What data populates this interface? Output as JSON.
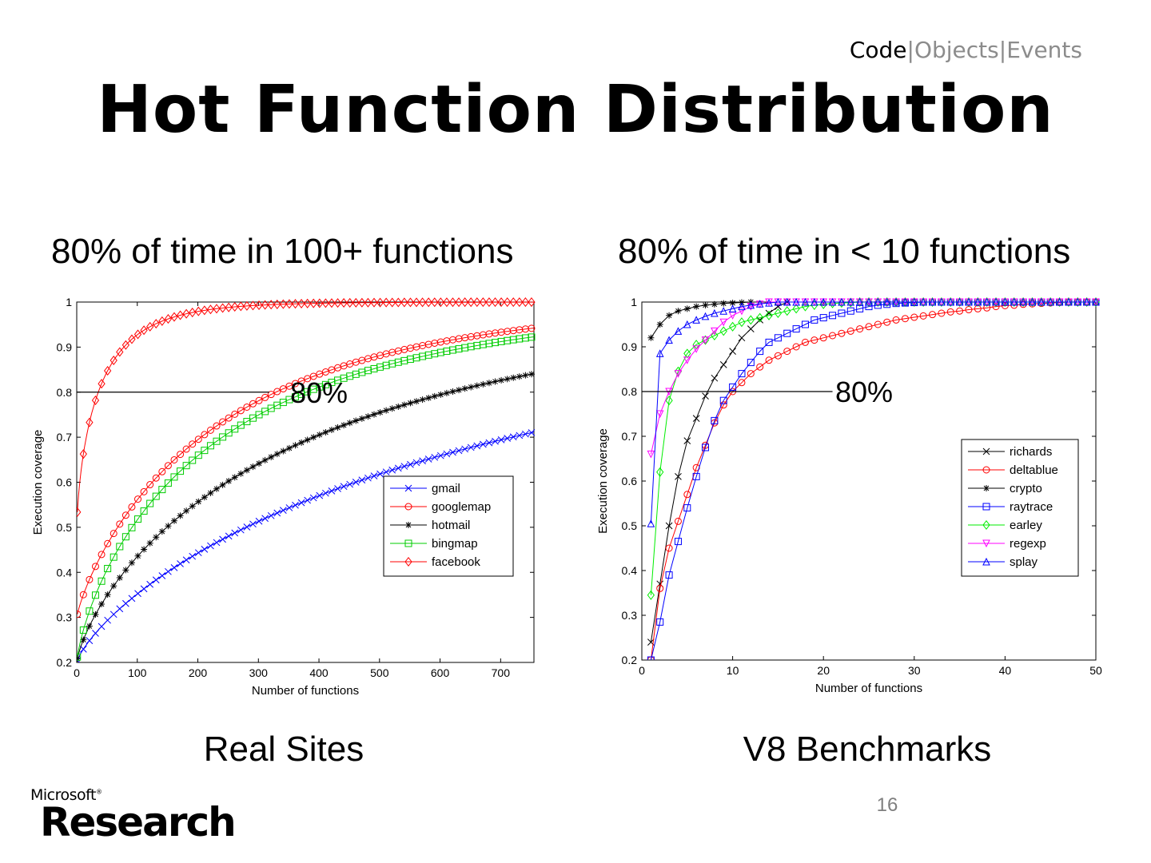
{
  "breadcrumb": {
    "active": "Code",
    "sep": "|",
    "item2": "Objects",
    "item3": "Events"
  },
  "title": "Hot Function Distribution",
  "left": {
    "subtitle": "80% of time in 100+ functions",
    "caption": "Real Sites"
  },
  "right": {
    "subtitle": "80% of time in < 10 functions",
    "caption": "V8 Benchmarks"
  },
  "page_number": "16",
  "logo": {
    "brand": "Microsoft",
    "reg": "®",
    "name": "Research"
  },
  "chart_data": [
    {
      "type": "line",
      "name": "real-sites",
      "xlabel": "Number of functions",
      "ylabel": "Execution coverage",
      "xlim": [
        0,
        755
      ],
      "ylim": [
        0.2,
        1
      ],
      "xticks": [
        0,
        100,
        200,
        300,
        400,
        500,
        600,
        700
      ],
      "yticks": [
        0.2,
        0.3,
        0.4,
        0.5,
        0.6,
        0.7,
        0.8,
        0.9,
        1
      ],
      "threshold": {
        "y": 0.8,
        "x_end": 318,
        "label": "80%"
      },
      "legend_position": "lower-right",
      "series": [
        {
          "name": "gmail",
          "color": "#0000ff",
          "marker": "x",
          "a": 0.2,
          "b": 0.8,
          "k": 0.0058,
          "p": 0.78,
          "every": 10
        },
        {
          "name": "googlemap",
          "color": "#ff0000",
          "marker": "o",
          "a": 0.3,
          "b": 0.7,
          "k": 0.0102,
          "p": 0.83,
          "every": 10
        },
        {
          "name": "hotmail",
          "color": "#000000",
          "marker": "*",
          "a": 0.2,
          "b": 0.8,
          "k": 0.0105,
          "p": 0.76,
          "every": 10
        },
        {
          "name": "bingmap",
          "color": "#00cc00",
          "marker": "s",
          "a": 0.2,
          "b": 0.8,
          "k": 0.0152,
          "p": 0.76,
          "every": 10
        },
        {
          "name": "facebook",
          "color": "#ff0000",
          "marker": "d",
          "a": 0.5,
          "b": 0.5,
          "k": 0.07,
          "p": 0.72,
          "every": 10
        }
      ]
    },
    {
      "type": "line",
      "name": "v8-benchmarks",
      "xlabel": "Number of functions",
      "ylabel": "Execution coverage",
      "xlim": [
        0,
        50
      ],
      "ylim": [
        0.2,
        1
      ],
      "xticks": [
        0,
        10,
        20,
        30,
        40,
        50
      ],
      "yticks": [
        0.2,
        0.3,
        0.4,
        0.5,
        0.6,
        0.7,
        0.8,
        0.9,
        1
      ],
      "threshold": {
        "y": 0.8,
        "x_end": 21,
        "label": "80%"
      },
      "legend_position": "center-right",
      "series": [
        {
          "name": "richards",
          "color": "#000000",
          "marker": "x",
          "values": [
            0.24,
            0.37,
            0.5,
            0.61,
            0.69,
            0.74,
            0.79,
            0.83,
            0.86,
            0.89,
            0.92,
            0.94,
            0.96,
            0.975,
            0.99,
            1
          ]
        },
        {
          "name": "deltablue",
          "color": "#ff0000",
          "marker": "o",
          "values": [
            0.2,
            0.36,
            0.45,
            0.51,
            0.57,
            0.63,
            0.68,
            0.73,
            0.77,
            0.8,
            0.82,
            0.84,
            0.855,
            0.87,
            0.88,
            0.89,
            0.9,
            0.91,
            0.915,
            0.92,
            0.925,
            0.93,
            0.935,
            0.94,
            0.945,
            0.95,
            0.955,
            0.96,
            0.963,
            0.966,
            0.969,
            0.972,
            0.975,
            0.978,
            0.98,
            0.983,
            0.985,
            0.987,
            0.99,
            0.992,
            0.993,
            0.995,
            0.996,
            0.997,
            0.998,
            0.999,
            1,
            1,
            1,
            1
          ]
        },
        {
          "name": "crypto",
          "color": "#000000",
          "marker": "*",
          "values": [
            0.92,
            0.95,
            0.97,
            0.98,
            0.985,
            0.99,
            0.993,
            0.995,
            0.997,
            0.998,
            0.999,
            1
          ]
        },
        {
          "name": "raytrace",
          "color": "#0000ff",
          "marker": "s",
          "values": [
            0.2,
            0.285,
            0.39,
            0.465,
            0.54,
            0.61,
            0.675,
            0.735,
            0.78,
            0.81,
            0.84,
            0.865,
            0.89,
            0.91,
            0.92,
            0.93,
            0.94,
            0.95,
            0.96,
            0.965,
            0.97,
            0.975,
            0.98,
            0.985,
            0.99,
            0.993,
            0.995,
            0.997,
            0.998,
            0.999,
            1,
            1,
            1,
            1,
            1,
            1,
            1,
            1,
            1,
            1,
            1,
            1,
            1,
            1,
            1,
            1,
            1,
            1,
            1,
            1
          ]
        },
        {
          "name": "earley",
          "color": "#00ee00",
          "marker": "d",
          "values": [
            0.345,
            0.62,
            0.78,
            0.845,
            0.885,
            0.905,
            0.915,
            0.925,
            0.935,
            0.945,
            0.955,
            0.96,
            0.965,
            0.97,
            0.975,
            0.98,
            0.985,
            0.99,
            0.993,
            0.995,
            0.997,
            0.998,
            0.999,
            1,
            1,
            1,
            1,
            1,
            1,
            1,
            1,
            1,
            1,
            1,
            1,
            1,
            1,
            1,
            1,
            1,
            1,
            1,
            1,
            1,
            1,
            1,
            1,
            1,
            1,
            1
          ]
        },
        {
          "name": "regexp",
          "color": "#ff00ff",
          "marker": "v",
          "values": [
            0.66,
            0.75,
            0.8,
            0.84,
            0.87,
            0.895,
            0.915,
            0.935,
            0.955,
            0.97,
            0.98,
            0.99,
            0.995,
            1,
            1,
            1,
            1,
            1,
            1,
            1,
            1,
            1,
            1,
            1,
            1,
            1,
            1,
            1,
            1,
            1,
            1,
            1,
            1,
            1,
            1,
            1,
            1,
            1,
            1,
            1,
            1,
            1,
            1,
            1,
            1,
            1,
            1,
            1,
            1,
            1
          ]
        },
        {
          "name": "splay",
          "color": "#0000ff",
          "marker": "^",
          "values": [
            0.505,
            0.885,
            0.915,
            0.935,
            0.95,
            0.96,
            0.968,
            0.975,
            0.98,
            0.985,
            0.99,
            0.993,
            0.996,
            0.998,
            1,
            1,
            1,
            1,
            1,
            1,
            1,
            1,
            1,
            1,
            1,
            1,
            1,
            1,
            1,
            1,
            1,
            1,
            1,
            1,
            1,
            1,
            1,
            1,
            1,
            1,
            1,
            1,
            1,
            1,
            1,
            1,
            1,
            1,
            1,
            1
          ]
        }
      ]
    }
  ]
}
